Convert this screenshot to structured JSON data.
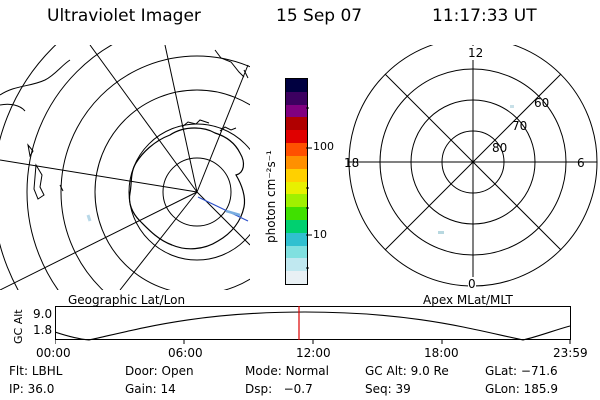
{
  "header": {
    "title": "Ultraviolet Imager",
    "date": "15 Sep 07",
    "time": "11:17:33 UT"
  },
  "left_panel": {
    "label": "Geographic Lat/Lon"
  },
  "right_panel": {
    "label": "Apex MLat/MLT",
    "mlt_labels": {
      "top": "12",
      "left": "18",
      "right": "6",
      "bottom": "0"
    },
    "mlat_labels": [
      "60",
      "70",
      "80"
    ]
  },
  "colorbar": {
    "unit_label": "photon cm⁻²s⁻¹",
    "ticks": [
      "100",
      "10"
    ],
    "colors": [
      "#000040",
      "#3c0060",
      "#800080",
      "#b00000",
      "#e00000",
      "#ff5000",
      "#ff9000",
      "#ffd000",
      "#e8f000",
      "#a0f000",
      "#40e000",
      "#00d070",
      "#30c0d0",
      "#80e0e0",
      "#c0e8f0",
      "#e8f0f4"
    ]
  },
  "timeline": {
    "axis_label": "GC Alt",
    "y_ticks": [
      "9.0",
      "1.8"
    ],
    "x_ticks": [
      "00:00",
      "06:00",
      "12:00",
      "18:00",
      "23:59"
    ],
    "marker_color": "#dd0000"
  },
  "info": {
    "row1": [
      {
        "label": "Flt:",
        "value": "LBHL"
      },
      {
        "label": "Door:",
        "value": "Open"
      },
      {
        "label": "Mode:",
        "value": "Normal"
      },
      {
        "label": "GC Alt:",
        "value": "9.0 Re"
      },
      {
        "label": "GLat:",
        "value": "−71.6"
      }
    ],
    "row2": [
      {
        "label": "IP:",
        "value": "36.0"
      },
      {
        "label": "Gain:",
        "value": "14"
      },
      {
        "label": "Dsp:",
        "value": "−0.7"
      },
      {
        "label": "Seq:",
        "value": "39"
      },
      {
        "label": "GLon:",
        "value": "185.9"
      }
    ]
  }
}
